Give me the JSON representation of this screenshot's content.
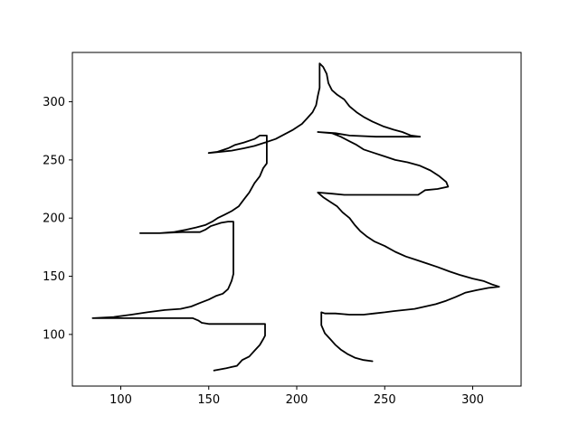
{
  "chart_data": {
    "type": "line",
    "title": "",
    "xlabel": "",
    "ylabel": "",
    "xlim": [
      72.5,
      327.5
    ],
    "ylim": [
      55.6,
      342.4
    ],
    "xticks": [
      100,
      150,
      200,
      250,
      300
    ],
    "yticks": [
      100,
      150,
      200,
      250,
      300
    ],
    "grid": false,
    "line_color": "#000000",
    "series": [
      {
        "values": [
          [
            153,
            69
          ],
          [
            160,
            71
          ],
          [
            166,
            73
          ],
          [
            169,
            78
          ],
          [
            173,
            81
          ],
          [
            176,
            86
          ],
          [
            179,
            91
          ],
          [
            181,
            96
          ],
          [
            182,
            99
          ],
          [
            182,
            109
          ],
          [
            170,
            109
          ],
          [
            150,
            109
          ],
          [
            146,
            110
          ],
          [
            144,
            112
          ],
          [
            141,
            114
          ],
          [
            120,
            114
          ],
          [
            100,
            114
          ],
          [
            84,
            114
          ],
          [
            96,
            115
          ],
          [
            106,
            117
          ],
          [
            115,
            119
          ],
          [
            125,
            121
          ],
          [
            134,
            122
          ],
          [
            140,
            124
          ],
          [
            145,
            127
          ],
          [
            150,
            130
          ],
          [
            154,
            133
          ],
          [
            158,
            135
          ],
          [
            161,
            139
          ],
          [
            163,
            146
          ],
          [
            164,
            152
          ],
          [
            164,
            170
          ],
          [
            164,
            197
          ],
          [
            161,
            197
          ],
          [
            157,
            196
          ],
          [
            151,
            193
          ],
          [
            148,
            190
          ],
          [
            145,
            188
          ],
          [
            135,
            188
          ],
          [
            122,
            187
          ],
          [
            111,
            187
          ],
          [
            122,
            187
          ],
          [
            130,
            188
          ],
          [
            137,
            190
          ],
          [
            143,
            192
          ],
          [
            148,
            194
          ],
          [
            152,
            197
          ],
          [
            155,
            200
          ],
          [
            159,
            203
          ],
          [
            163,
            206
          ],
          [
            167,
            210
          ],
          [
            170,
            216
          ],
          [
            173,
            222
          ],
          [
            176,
            230
          ],
          [
            179,
            236
          ],
          [
            181,
            243
          ],
          [
            183,
            247
          ],
          [
            183,
            257
          ],
          [
            183,
            271
          ],
          [
            179,
            271
          ],
          [
            176,
            268
          ],
          [
            170,
            265
          ],
          [
            165,
            263
          ],
          [
            161,
            260
          ],
          [
            155,
            257
          ],
          [
            150,
            256
          ],
          [
            157,
            257
          ],
          [
            163,
            258
          ],
          [
            170,
            260
          ],
          [
            176,
            262
          ],
          [
            182,
            265
          ],
          [
            188,
            268
          ],
          [
            193,
            272
          ],
          [
            198,
            276
          ],
          [
            203,
            281
          ],
          [
            206,
            286
          ],
          [
            209,
            291
          ],
          [
            211,
            297
          ],
          [
            212,
            305
          ],
          [
            213,
            312
          ],
          [
            213,
            333
          ],
          [
            215,
            330
          ],
          [
            217,
            324
          ],
          [
            218,
            316
          ],
          [
            220,
            310
          ],
          [
            223,
            306
          ],
          [
            227,
            302
          ],
          [
            230,
            296
          ],
          [
            234,
            291
          ],
          [
            238,
            287
          ],
          [
            243,
            283
          ],
          [
            249,
            279
          ],
          [
            255,
            276
          ],
          [
            260,
            274
          ],
          [
            265,
            271
          ],
          [
            270,
            270
          ],
          [
            261,
            270
          ],
          [
            245,
            270
          ],
          [
            230,
            271
          ],
          [
            222,
            273
          ],
          [
            212,
            274
          ],
          [
            220,
            273
          ],
          [
            225,
            270
          ],
          [
            230,
            266
          ],
          [
            234,
            263
          ],
          [
            238,
            259
          ],
          [
            244,
            256
          ],
          [
            250,
            253
          ],
          [
            256,
            250
          ],
          [
            263,
            248
          ],
          [
            270,
            245
          ],
          [
            276,
            241
          ],
          [
            281,
            236
          ],
          [
            285,
            231
          ],
          [
            286,
            227
          ],
          [
            280,
            225
          ],
          [
            273,
            224
          ],
          [
            269,
            220
          ],
          [
            255,
            220
          ],
          [
            240,
            220
          ],
          [
            227,
            220
          ],
          [
            220,
            221
          ],
          [
            212,
            222
          ],
          [
            215,
            218
          ],
          [
            219,
            214
          ],
          [
            223,
            210
          ],
          [
            226,
            205
          ],
          [
            230,
            200
          ],
          [
            233,
            194
          ],
          [
            236,
            189
          ],
          [
            240,
            184
          ],
          [
            244,
            180
          ],
          [
            250,
            176
          ],
          [
            256,
            171
          ],
          [
            262,
            167
          ],
          [
            268,
            164
          ],
          [
            274,
            161
          ],
          [
            280,
            158
          ],
          [
            287,
            154
          ],
          [
            293,
            151
          ],
          [
            300,
            148
          ],
          [
            306,
            146
          ],
          [
            311,
            143
          ],
          [
            315,
            141
          ],
          [
            309,
            140
          ],
          [
            302,
            138
          ],
          [
            296,
            136
          ],
          [
            290,
            132
          ],
          [
            285,
            129
          ],
          [
            279,
            126
          ],
          [
            273,
            124
          ],
          [
            267,
            122
          ],
          [
            261,
            121
          ],
          [
            255,
            120
          ],
          [
            250,
            119
          ],
          [
            244,
            118
          ],
          [
            238,
            117
          ],
          [
            230,
            117
          ],
          [
            222,
            118
          ],
          [
            216,
            118
          ],
          [
            214,
            119
          ],
          [
            214,
            115
          ],
          [
            214,
            108
          ],
          [
            216,
            101
          ],
          [
            219,
            96
          ],
          [
            222,
            91
          ],
          [
            225,
            87
          ],
          [
            229,
            83
          ],
          [
            233,
            80
          ],
          [
            238,
            78
          ],
          [
            243,
            77
          ]
        ]
      }
    ]
  }
}
